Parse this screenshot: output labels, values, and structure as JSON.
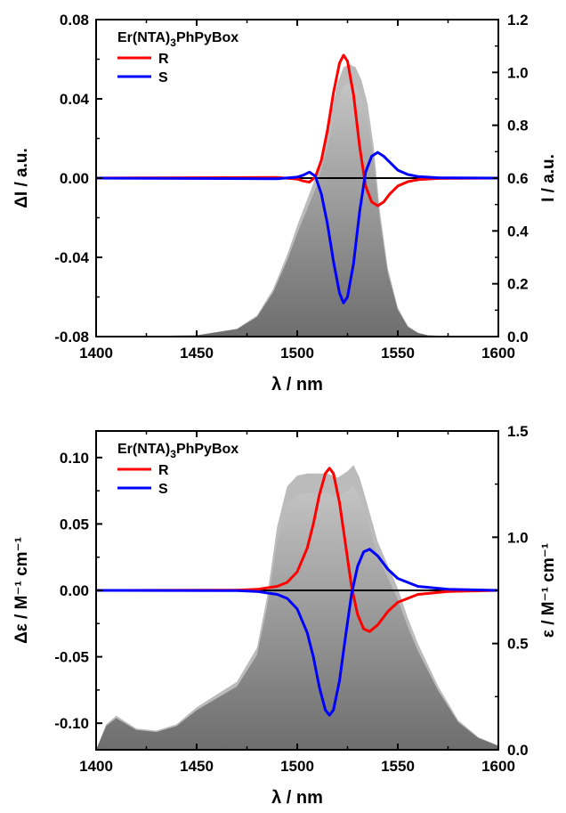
{
  "chart_data": [
    {
      "type": "line",
      "xlabel": "λ / nm",
      "ylabel_left": "ΔI / a.u.",
      "ylabel_right": "I / a.u.",
      "xlim": [
        1400,
        1600
      ],
      "ylim_left": [
        -0.08,
        0.08
      ],
      "ylim_right": [
        0.0,
        1.2
      ],
      "x_ticks": [
        "1400",
        "1450",
        "1500",
        "1550",
        "1600"
      ],
      "y_ticks_left": [
        "-0.08",
        "-0.04",
        "0.00",
        "0.04",
        "0.08"
      ],
      "y_ticks_right": [
        "0.0",
        "0.2",
        "0.4",
        "0.6",
        "0.8",
        "1.0",
        "1.2"
      ],
      "legend": {
        "title": "Er(NTA)",
        "title_sub": "3",
        "title_rest": "PhPyBox",
        "position": "top-left"
      },
      "series": [
        {
          "name": "R",
          "color": "#ff0000",
          "axis": "left",
          "x": [
            1400,
            1490,
            1500,
            1503,
            1506,
            1509,
            1512,
            1515,
            1518,
            1521,
            1523,
            1525,
            1528,
            1531,
            1534,
            1537,
            1540,
            1543,
            1546,
            1550,
            1555,
            1560,
            1570,
            1600
          ],
          "values": [
            0,
            0.0003,
            -0.0005,
            -0.0015,
            -0.002,
            0.0005,
            0.009,
            0.024,
            0.043,
            0.058,
            0.062,
            0.059,
            0.042,
            0.016,
            -0.004,
            -0.012,
            -0.014,
            -0.012,
            -0.008,
            -0.004,
            -0.0018,
            -0.0008,
            -0.0002,
            0
          ]
        },
        {
          "name": "S",
          "color": "#0000ff",
          "axis": "left",
          "x": [
            1400,
            1490,
            1500,
            1503,
            1506,
            1509,
            1512,
            1515,
            1518,
            1521,
            1523,
            1525,
            1528,
            1531,
            1534,
            1537,
            1540,
            1543,
            1546,
            1550,
            1555,
            1560,
            1570,
            1600
          ],
          "values": [
            0,
            -0.0003,
            0.0005,
            0.0015,
            0.003,
            0.001,
            -0.008,
            -0.023,
            -0.042,
            -0.058,
            -0.063,
            -0.06,
            -0.043,
            -0.017,
            0.003,
            0.011,
            0.013,
            0.011,
            0.008,
            0.004,
            0.0018,
            0.0008,
            0.0002,
            0
          ]
        },
        {
          "name": "",
          "color": "#bbbbbb",
          "type": "area",
          "axis": "right",
          "x": [
            1400,
            1450,
            1470,
            1480,
            1488,
            1495,
            1500,
            1505,
            1510,
            1515,
            1520,
            1523,
            1526,
            1529,
            1532,
            1535,
            1538,
            1541,
            1545,
            1550,
            1555,
            1560,
            1565,
            1580,
            1600
          ],
          "values": [
            0.0,
            0.005,
            0.03,
            0.08,
            0.18,
            0.31,
            0.42,
            0.52,
            0.62,
            0.77,
            0.96,
            1.02,
            1.03,
            1.02,
            0.97,
            0.88,
            0.72,
            0.48,
            0.26,
            0.11,
            0.04,
            0.015,
            0.005,
            0.0,
            0.0
          ]
        }
      ]
    },
    {
      "type": "line",
      "xlabel": "λ / nm",
      "ylabel_left": "Δε / M⁻¹ cm⁻¹",
      "ylabel_right": "ε / M⁻¹ cm⁻¹",
      "xlim": [
        1400,
        1600
      ],
      "ylim_left": [
        -0.12,
        0.12
      ],
      "ylim_right": [
        0.0,
        1.5
      ],
      "x_ticks": [
        "1400",
        "1450",
        "1500",
        "1550",
        "1600"
      ],
      "y_ticks_left": [
        "-0.10",
        "-0.05",
        "0.00",
        "0.05",
        "0.10"
      ],
      "y_ticks_right": [
        "0.0",
        "0.5",
        "1.0",
        "1.5"
      ],
      "legend": {
        "title": "Er(NTA)",
        "title_sub": "3",
        "title_rest": "PhPyBox",
        "position": "top-left"
      },
      "series": [
        {
          "name": "R",
          "color": "#ff0000",
          "axis": "left",
          "x": [
            1400,
            1470,
            1480,
            1490,
            1495,
            1500,
            1505,
            1508,
            1511,
            1514,
            1516,
            1518,
            1521,
            1524,
            1527,
            1530,
            1533,
            1536,
            1540,
            1545,
            1550,
            1560,
            1575,
            1600
          ],
          "values": [
            0,
            0.0002,
            0.0008,
            0.003,
            0.006,
            0.014,
            0.032,
            0.05,
            0.072,
            0.088,
            0.092,
            0.088,
            0.066,
            0.035,
            0.003,
            -0.018,
            -0.029,
            -0.031,
            -0.026,
            -0.016,
            -0.009,
            -0.003,
            -0.0008,
            0
          ]
        },
        {
          "name": "S",
          "color": "#0000ff",
          "axis": "left",
          "x": [
            1400,
            1470,
            1480,
            1490,
            1495,
            1500,
            1505,
            1508,
            1511,
            1514,
            1516,
            1518,
            1521,
            1524,
            1527,
            1530,
            1533,
            1536,
            1540,
            1545,
            1550,
            1560,
            1575,
            1600
          ],
          "values": [
            0,
            -0.0002,
            -0.0008,
            -0.003,
            -0.006,
            -0.014,
            -0.032,
            -0.05,
            -0.073,
            -0.09,
            -0.094,
            -0.09,
            -0.068,
            -0.035,
            -0.003,
            0.018,
            0.029,
            0.031,
            0.026,
            0.016,
            0.009,
            0.003,
            0.0008,
            0
          ]
        },
        {
          "name": "",
          "color": "#bbbbbb",
          "type": "area",
          "axis": "right",
          "x": [
            1400,
            1405,
            1410,
            1415,
            1420,
            1430,
            1440,
            1450,
            1460,
            1470,
            1480,
            1485,
            1490,
            1495,
            1500,
            1505,
            1510,
            1515,
            1520,
            1525,
            1528,
            1531,
            1535,
            1540,
            1545,
            1550,
            1555,
            1560,
            1570,
            1580,
            1590,
            1600
          ],
          "values": [
            0.0,
            0.12,
            0.16,
            0.13,
            0.1,
            0.09,
            0.12,
            0.2,
            0.26,
            0.32,
            0.48,
            0.72,
            1.05,
            1.24,
            1.29,
            1.3,
            1.3,
            1.3,
            1.28,
            1.31,
            1.34,
            1.28,
            1.15,
            0.98,
            0.87,
            0.76,
            0.62,
            0.5,
            0.3,
            0.14,
            0.06,
            0.02
          ]
        }
      ]
    }
  ]
}
